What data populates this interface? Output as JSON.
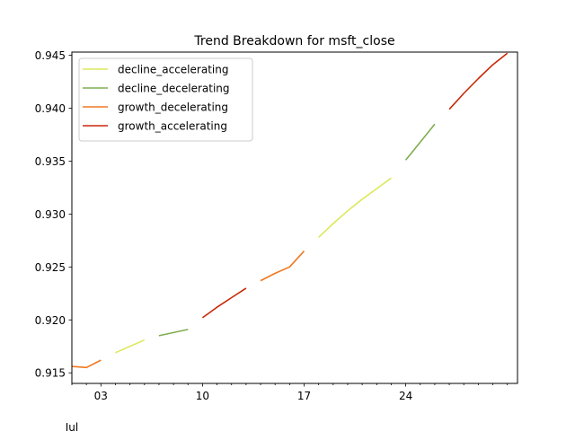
{
  "chart_data": {
    "type": "line",
    "title": "Trend Breakdown for msft_close",
    "xlabel": "",
    "ylabel": "",
    "x_range": [
      1.0,
      31.7
    ],
    "ylim": [
      0.914,
      0.9453
    ],
    "x_ticks": [
      {
        "x": 3,
        "label": "03"
      },
      {
        "x": 10,
        "label": "10"
      },
      {
        "x": 17,
        "label": "17"
      },
      {
        "x": 24,
        "label": "24"
      }
    ],
    "x_minor_ticks": [
      1,
      2,
      4,
      5,
      6,
      7,
      8,
      9,
      11,
      12,
      13,
      14,
      15,
      16,
      18,
      19,
      20,
      21,
      22,
      23,
      25,
      26,
      27,
      28,
      29,
      30,
      31
    ],
    "x_secondary_label": "Jul",
    "y_ticks": [
      0.915,
      0.92,
      0.925,
      0.93,
      0.935,
      0.94,
      0.945
    ],
    "y_tick_labels": [
      "0.915",
      "0.920",
      "0.925",
      "0.930",
      "0.935",
      "0.940",
      "0.945"
    ],
    "grid": false,
    "legend_position": "top-left",
    "series": [
      {
        "name": "decline_accelerating",
        "color": "#dce85a",
        "segments": [
          [
            [
              4,
              0.9169
            ],
            [
              5,
              0.9175
            ],
            [
              6,
              0.9181
            ]
          ],
          [
            [
              18,
              0.9278
            ],
            [
              19,
              0.9291
            ],
            [
              20,
              0.9303
            ],
            [
              21,
              0.9314
            ],
            [
              22,
              0.9324
            ],
            [
              23,
              0.9334
            ]
          ]
        ]
      },
      {
        "name": "decline_decelerating",
        "color": "#7fad50",
        "segments": [
          [
            [
              7,
              0.9185
            ],
            [
              8,
              0.9188
            ],
            [
              9,
              0.9191
            ]
          ],
          [
            [
              24,
              0.9351
            ],
            [
              25,
              0.9368
            ],
            [
              26,
              0.9385
            ]
          ]
        ]
      },
      {
        "name": "growth_decelerating",
        "color": "#f07820",
        "segments": [
          [
            [
              1,
              0.9156
            ],
            [
              2,
              0.9155
            ],
            [
              3,
              0.9162
            ]
          ],
          [
            [
              14,
              0.9237
            ],
            [
              15,
              0.9244
            ],
            [
              16,
              0.925
            ],
            [
              17,
              0.9265
            ]
          ]
        ]
      },
      {
        "name": "growth_accelerating",
        "color": "#c82808",
        "segments": [
          [
            [
              10,
              0.9202
            ],
            [
              11,
              0.9212
            ],
            [
              12,
              0.9221
            ],
            [
              13,
              0.923
            ]
          ],
          [
            [
              27,
              0.9399
            ],
            [
              28,
              0.9414
            ],
            [
              29,
              0.9428
            ],
            [
              30,
              0.9441
            ],
            [
              31,
              0.9452
            ]
          ]
        ]
      }
    ]
  }
}
